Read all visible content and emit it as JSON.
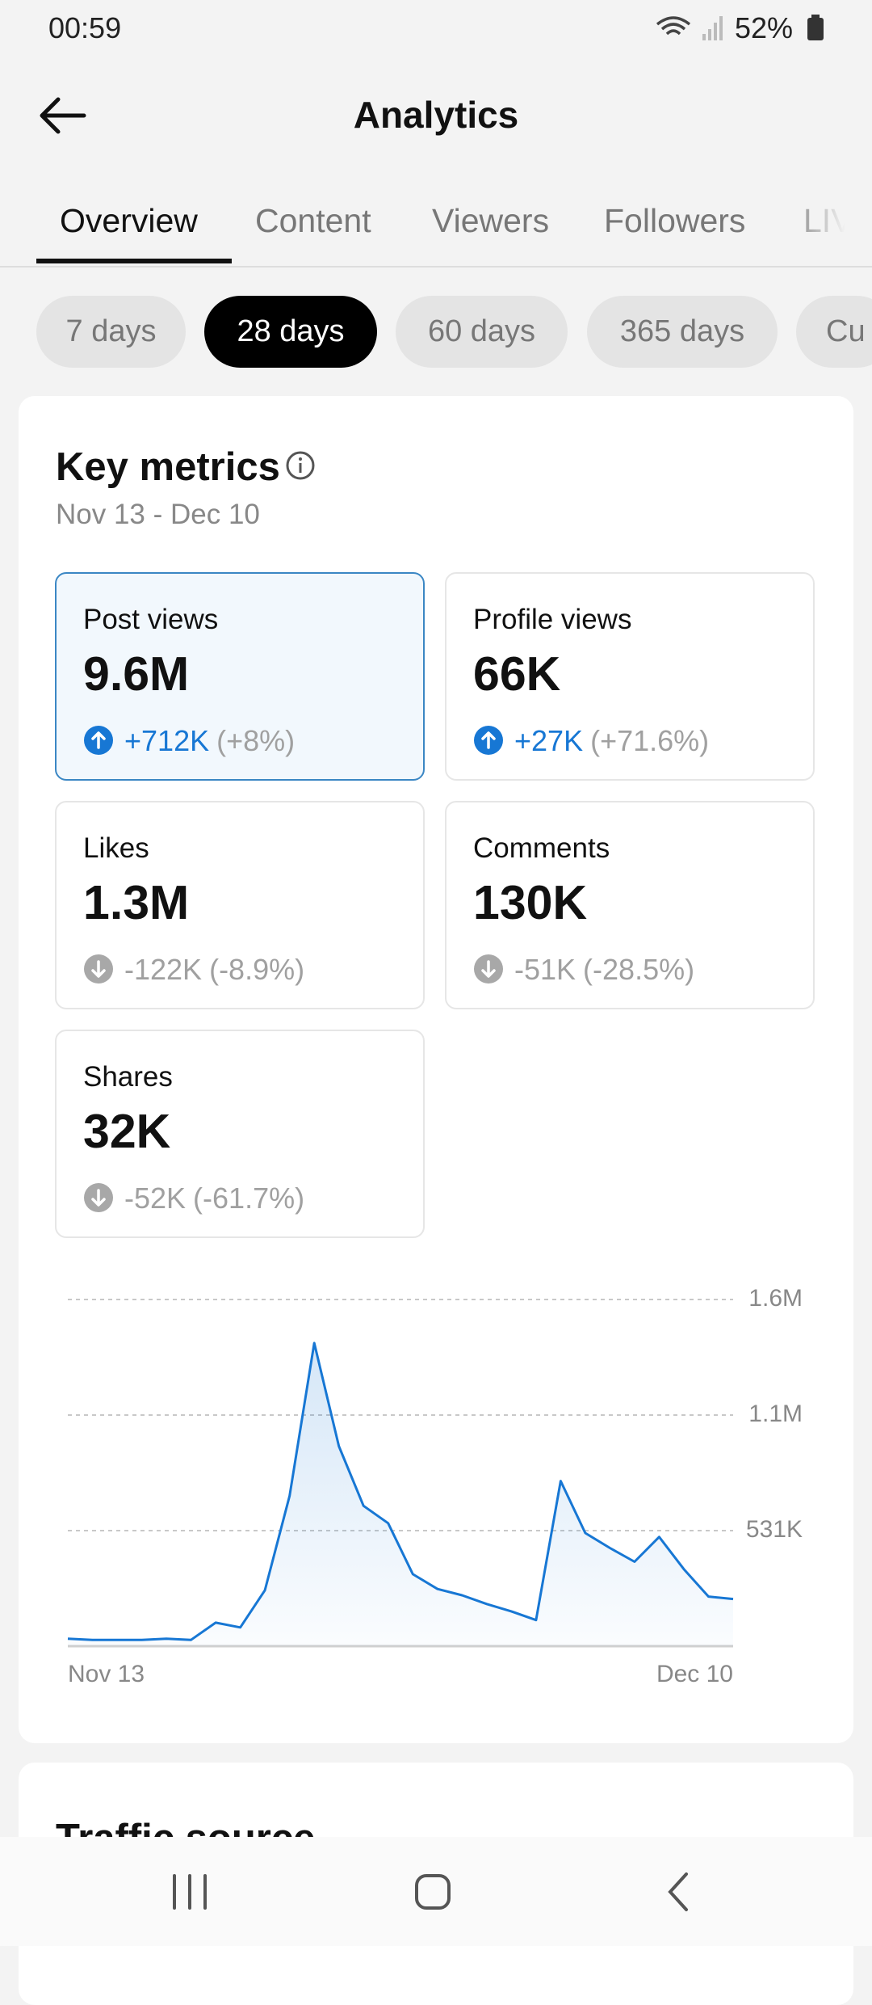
{
  "status_bar": {
    "time": "00:59",
    "battery": "52%"
  },
  "header": {
    "title": "Analytics"
  },
  "tabs": [
    "Overview",
    "Content",
    "Viewers",
    "Followers",
    "LIVE"
  ],
  "active_tab": 0,
  "ranges": [
    "7 days",
    "28 days",
    "60 days",
    "365 days",
    "Cu"
  ],
  "active_range": 1,
  "key_metrics": {
    "title": "Key metrics",
    "date_range": "Nov 13 - Dec 10",
    "metrics": [
      {
        "label": "Post views",
        "value": "9.6M",
        "change": "+712K",
        "percent": "(+8%)",
        "trend": "up",
        "selected": true
      },
      {
        "label": "Profile views",
        "value": "66K",
        "change": "+27K",
        "percent": "(+71.6%)",
        "trend": "up",
        "selected": false
      },
      {
        "label": "Likes",
        "value": "1.3M",
        "change": "-122K",
        "percent": "(-8.9%)",
        "trend": "down",
        "selected": false
      },
      {
        "label": "Comments",
        "value": "130K",
        "change": "-51K",
        "percent": "(-28.5%)",
        "trend": "down",
        "selected": false
      },
      {
        "label": "Shares",
        "value": "32K",
        "change": "-52K",
        "percent": "(-61.7%)",
        "trend": "down",
        "selected": false
      }
    ]
  },
  "chart_data": {
    "type": "line",
    "categories": [
      "Nov 13",
      null,
      null,
      null,
      null,
      null,
      null,
      null,
      null,
      null,
      null,
      null,
      null,
      null,
      null,
      null,
      null,
      null,
      null,
      null,
      null,
      null,
      null,
      null,
      null,
      null,
      null,
      "Dec 10"
    ],
    "values": [
      34000,
      29000,
      29000,
      29000,
      34000,
      29000,
      108000,
      86000,
      257000,
      691000,
      1393000,
      919000,
      645000,
      565000,
      331000,
      263000,
      234000,
      194000,
      160000,
      120000,
      759000,
      520000,
      451000,
      388000,
      502000,
      354000,
      228000,
      217000
    ],
    "color": "#1777d4",
    "ylim": [
      0,
      1593000
    ],
    "yticks": [
      {
        "value": 531000,
        "label": "531K"
      },
      {
        "value": 1062000,
        "label": "1.1M"
      },
      {
        "value": 1593000,
        "label": "1.6M"
      }
    ],
    "grid": true
  },
  "traffic_source": {
    "title": "Traffic source"
  }
}
